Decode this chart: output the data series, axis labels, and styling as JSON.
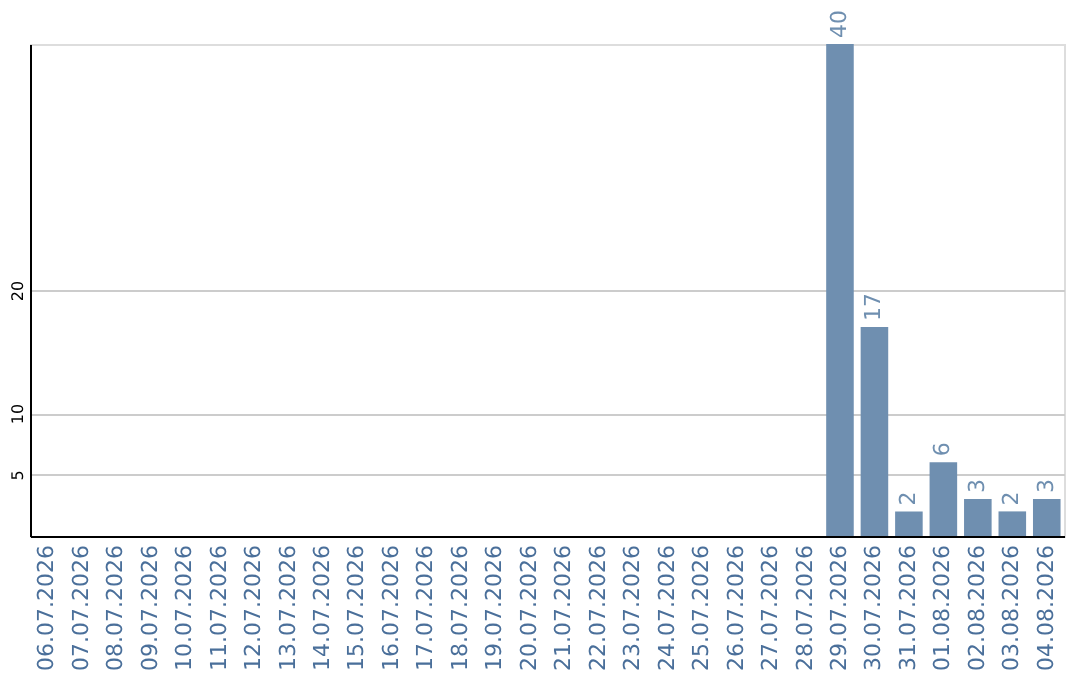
{
  "chart_data": {
    "type": "bar",
    "categories": [
      "06.07.2026",
      "07.07.2026",
      "08.07.2026",
      "09.07.2026",
      "10.07.2026",
      "11.07.2026",
      "12.07.2026",
      "13.07.2026",
      "14.07.2026",
      "15.07.2026",
      "16.07.2026",
      "17.07.2026",
      "18.07.2026",
      "19.07.2026",
      "20.07.2026",
      "21.07.2026",
      "22.07.2026",
      "23.07.2026",
      "24.07.2026",
      "25.07.2026",
      "26.07.2026",
      "27.07.2026",
      "28.07.2026",
      "29.07.2026",
      "30.07.2026",
      "31.07.2026",
      "01.08.2026",
      "02.08.2026",
      "03.08.2026",
      "04.08.2026"
    ],
    "values": [
      0,
      0,
      0,
      0,
      0,
      0,
      0,
      0,
      0,
      0,
      0,
      0,
      0,
      0,
      0,
      0,
      0,
      0,
      0,
      0,
      0,
      0,
      0,
      40,
      17,
      2,
      6,
      3,
      2,
      3
    ],
    "value_labels": [
      null,
      null,
      null,
      null,
      null,
      null,
      null,
      null,
      null,
      null,
      null,
      null,
      null,
      null,
      null,
      null,
      null,
      null,
      null,
      null,
      null,
      null,
      null,
      "40",
      "17",
      "2",
      "6",
      "3",
      "2",
      "3"
    ],
    "color": "#6f8fb0",
    "ylim": [
      0,
      40
    ],
    "yticks": [
      5,
      10,
      20
    ],
    "grid": "y"
  }
}
